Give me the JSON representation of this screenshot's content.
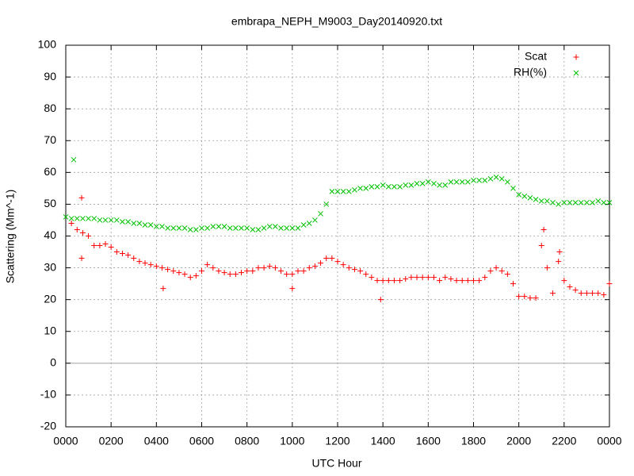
{
  "chart_data": {
    "type": "scatter",
    "title": "embrapa_NEPH_M9003_Day20140920.txt",
    "xlabel": "UTC Hour",
    "ylabel": "Scattering (Mm^-1)",
    "xlim": [
      0,
      24
    ],
    "ylim": [
      -20,
      100
    ],
    "xticks": [
      {
        "value": 0,
        "label": "0000"
      },
      {
        "value": 2,
        "label": "0200"
      },
      {
        "value": 4,
        "label": "0400"
      },
      {
        "value": 6,
        "label": "0600"
      },
      {
        "value": 8,
        "label": "0800"
      },
      {
        "value": 10,
        "label": "1000"
      },
      {
        "value": 12,
        "label": "1200"
      },
      {
        "value": 14,
        "label": "1400"
      },
      {
        "value": 16,
        "label": "1600"
      },
      {
        "value": 18,
        "label": "1800"
      },
      {
        "value": 20,
        "label": "2000"
      },
      {
        "value": 22,
        "label": "2200"
      },
      {
        "value": 24,
        "label": "0000"
      }
    ],
    "yticks": [
      -20,
      -10,
      0,
      10,
      20,
      30,
      40,
      50,
      60,
      70,
      80,
      90,
      100
    ],
    "grid": true,
    "legend": "top-right",
    "series": [
      {
        "name": "Scat",
        "color": "#ff0000",
        "marker": "plus",
        "x": [
          0.25,
          0.5,
          0.75,
          1,
          1.25,
          1.5,
          1.75,
          2,
          2.25,
          2.5,
          2.75,
          3,
          3.25,
          3.5,
          3.75,
          4,
          4.25,
          4.5,
          4.75,
          5,
          5.25,
          5.5,
          5.75,
          6,
          6.25,
          6.5,
          6.75,
          7,
          7.25,
          7.5,
          7.75,
          8,
          8.25,
          8.5,
          8.75,
          9,
          9.25,
          9.5,
          9.75,
          10,
          10.25,
          10.5,
          10.75,
          11,
          11.25,
          11.5,
          11.75,
          12,
          12.25,
          12.5,
          12.75,
          13,
          13.25,
          13.5,
          13.75,
          14,
          14.25,
          14.5,
          14.75,
          15,
          15.25,
          15.5,
          15.75,
          16,
          16.25,
          16.5,
          16.75,
          17,
          17.25,
          17.5,
          17.75,
          18,
          18.25,
          18.5,
          18.75,
          19,
          19.25,
          19.5,
          19.75,
          20,
          20.25,
          20.5,
          20.75,
          21,
          21.25,
          21.5,
          21.75,
          22,
          22.25,
          22.5,
          22.75,
          23,
          23.25,
          23.5,
          23.75,
          24,
          0.7,
          0.7,
          4.3,
          10,
          13.9,
          21.1,
          21.8
        ],
        "values": [
          44,
          42,
          41,
          40,
          37,
          37,
          37.5,
          36.5,
          35,
          34.5,
          34,
          33,
          32,
          31.5,
          31,
          30.5,
          30,
          29.5,
          29,
          28.5,
          28,
          27,
          27.5,
          29,
          31,
          30,
          29,
          28.5,
          28,
          28,
          28.5,
          29,
          29,
          30,
          30,
          30.5,
          30,
          29,
          28,
          28,
          29,
          29,
          30,
          30.5,
          31.5,
          33,
          33,
          32,
          31,
          30,
          29.5,
          29,
          28,
          27,
          26,
          26,
          26,
          26,
          26,
          26.5,
          27,
          27,
          27,
          27,
          27,
          26,
          27,
          26.5,
          26,
          26,
          26,
          26,
          26,
          27,
          29,
          30,
          29,
          28,
          25,
          21,
          21,
          20.5,
          20.5,
          37,
          30,
          22,
          32,
          26,
          24,
          23,
          22,
          22,
          22,
          22,
          21.5,
          25,
          52,
          33,
          23.5,
          23.5,
          20,
          42,
          35
        ]
      },
      {
        "name": "RH(%)",
        "color": "#00c000",
        "marker": "cross",
        "x": [
          0,
          0.25,
          0.5,
          0.75,
          1,
          1.25,
          1.5,
          1.75,
          2,
          2.25,
          2.5,
          2.75,
          3,
          3.25,
          3.5,
          3.75,
          4,
          4.25,
          4.5,
          4.75,
          5,
          5.25,
          5.5,
          5.75,
          6,
          6.25,
          6.5,
          6.75,
          7,
          7.25,
          7.5,
          7.75,
          8,
          8.25,
          8.5,
          8.75,
          9,
          9.25,
          9.5,
          9.75,
          10,
          10.25,
          10.5,
          10.75,
          11,
          11.25,
          11.5,
          11.75,
          12,
          12.25,
          12.5,
          12.75,
          13,
          13.25,
          13.5,
          13.75,
          14,
          14.25,
          14.5,
          14.75,
          15,
          15.25,
          15.5,
          15.75,
          16,
          16.25,
          16.5,
          16.75,
          17,
          17.25,
          17.5,
          17.75,
          18,
          18.25,
          18.5,
          18.75,
          19,
          19.25,
          19.5,
          19.75,
          20,
          20.25,
          20.5,
          20.75,
          21,
          21.25,
          21.5,
          21.75,
          22,
          22.25,
          22.5,
          22.75,
          23,
          23.25,
          23.5,
          23.75,
          24,
          0.35
        ],
        "values": [
          46,
          45.5,
          45.5,
          45.5,
          45.5,
          45.5,
          45,
          45,
          45,
          45,
          44.5,
          44.5,
          44,
          44,
          43.5,
          43.5,
          43,
          43,
          42.5,
          42.5,
          42.5,
          42.5,
          42,
          42,
          42.5,
          42.5,
          43,
          43,
          43,
          42.5,
          42.5,
          42.5,
          42.5,
          42,
          42,
          42.5,
          43,
          43,
          42.5,
          42.5,
          42.5,
          42.5,
          43.5,
          44,
          45,
          47,
          50,
          54,
          54,
          54,
          54,
          54.5,
          55,
          55,
          55.5,
          55.5,
          56,
          55.5,
          55.5,
          55.5,
          56,
          56,
          56.5,
          56.5,
          57,
          56.5,
          56,
          56,
          57,
          57,
          57,
          57,
          57.5,
          57.5,
          57.5,
          58,
          58.5,
          58,
          57,
          55,
          53,
          52.5,
          52,
          51.5,
          51,
          51,
          50.5,
          50,
          50.5,
          50.5,
          50.5,
          50.5,
          50.5,
          50.5,
          51,
          50.5,
          50.5,
          64
        ]
      }
    ]
  }
}
